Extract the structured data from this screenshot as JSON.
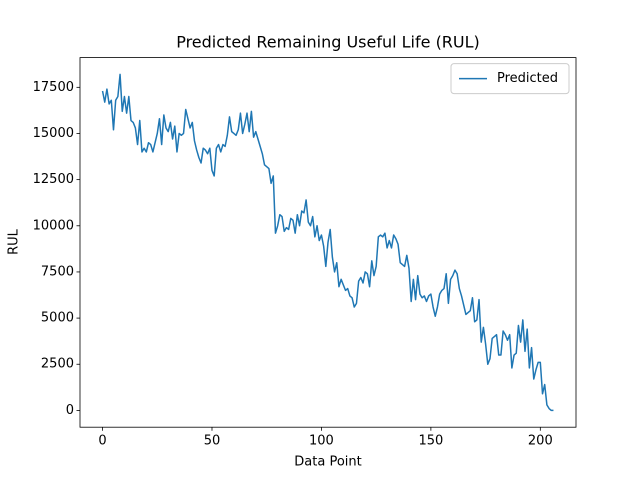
{
  "chart_data": {
    "type": "line",
    "title": "Predicted Remaining Useful Life (RUL)",
    "x_label": "Data Point",
    "y_label": "RUL",
    "series": [
      {
        "name": "Predicted",
        "color": "#1f77b4",
        "values": [
          17300,
          16700,
          17400,
          16600,
          16800,
          15200,
          16800,
          17000,
          18200,
          16200,
          17000,
          16100,
          17000,
          15700,
          15600,
          15300,
          14400,
          15700,
          14000,
          14200,
          14000,
          14500,
          14400,
          14000,
          14500,
          15000,
          15800,
          14400,
          16000,
          15300,
          15100,
          15600,
          14700,
          15400,
          14000,
          15000,
          14900,
          15000,
          16300,
          15800,
          15300,
          15600,
          14600,
          14100,
          13700,
          13400,
          14200,
          14100,
          13900,
          14200,
          13000,
          12700,
          14200,
          14400,
          14000,
          14400,
          14300,
          14900,
          15900,
          15100,
          15000,
          14900,
          15200,
          16100,
          15000,
          15500,
          16100,
          15100,
          16200,
          14800,
          15100,
          14700,
          14300,
          13900,
          13300,
          13200,
          13100,
          12300,
          12700,
          9600,
          10000,
          10600,
          10500,
          9700,
          9900,
          9800,
          10400,
          10300,
          9600,
          10600,
          10000,
          10800,
          10700,
          11400,
          10200,
          10000,
          10500,
          9400,
          10000,
          9200,
          9500,
          8900,
          7800,
          9100,
          9800,
          8300,
          7500,
          8000,
          6700,
          7100,
          6800,
          6500,
          6600,
          6200,
          6100,
          5600,
          5800,
          7000,
          7200,
          6900,
          7500,
          7400,
          6700,
          8100,
          7300,
          7800,
          9400,
          9500,
          9400,
          9600,
          8800,
          9200,
          8800,
          9500,
          9300,
          9000,
          8000,
          7900,
          7800,
          8400,
          7700,
          5900,
          7100,
          6000,
          7300,
          6300,
          6100,
          6200,
          5900,
          6200,
          6300,
          5600,
          5100,
          5600,
          6300,
          6500,
          6600,
          7400,
          5800,
          7100,
          7300,
          7600,
          7400,
          6600,
          6200,
          5700,
          5200,
          5300,
          5400,
          6100,
          4800,
          4900,
          6000,
          3700,
          4500,
          3600,
          2500,
          2800,
          3900,
          4000,
          4100,
          3000,
          3000,
          4300,
          4100,
          3800,
          4100,
          2300,
          3000,
          3100,
          4600,
          3700,
          4900,
          3200,
          4400,
          2300,
          3400,
          1700,
          2200,
          2600,
          2600,
          900,
          1400,
          300,
          100,
          0,
          0
        ]
      }
    ],
    "xlim": [
      -10.3,
      216.3
    ],
    "ylim": [
      -910,
      19110
    ],
    "xticks": [
      0,
      50,
      100,
      150,
      200
    ],
    "yticks": [
      0,
      2500,
      5000,
      7500,
      10000,
      12500,
      15000,
      17500
    ],
    "legend": "upper right"
  }
}
